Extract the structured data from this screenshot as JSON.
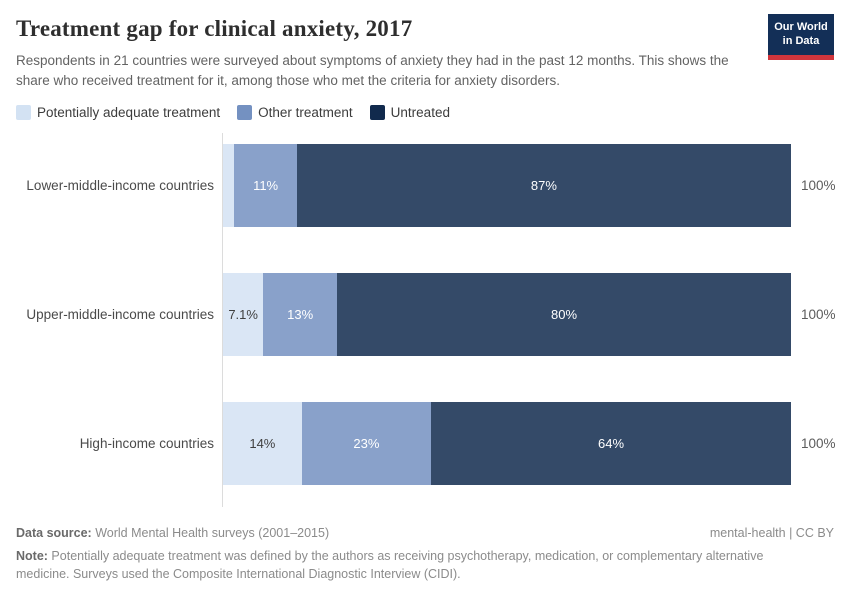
{
  "header": {
    "title": "Treatment gap for clinical anxiety, 2017",
    "subtitle": "Respondents in 21 countries were surveyed about symptoms of anxiety they had in the past 12 months. This shows the share who received treatment for it, among those who met the criteria for anxiety disorders.",
    "logo": {
      "line1": "Our World",
      "line2": "in Data",
      "bg_color": "#132f57",
      "accent_color": "#d0353c"
    }
  },
  "legend": [
    {
      "label": "Potentially adequate treatment",
      "color": "#d3e2f3"
    },
    {
      "label": "Other treatment",
      "color": "#7491c1"
    },
    {
      "label": "Untreated",
      "color": "#112a4d"
    }
  ],
  "chart_data": {
    "type": "bar",
    "orientation": "horizontal",
    "stacked": true,
    "unit": "%",
    "xlim": [
      0,
      100
    ],
    "grid": false,
    "legend_position": "top",
    "bar_fill_opacity": 0.85,
    "axis_line_color": "#dcdcdc",
    "categories": [
      "Lower-middle-income countries",
      "Upper-middle-income countries",
      "High-income countries"
    ],
    "series": [
      {
        "name": "Potentially adequate treatment",
        "color": "#d3e2f3",
        "label_color": "#3f3f3f",
        "values": [
          2,
          7.1,
          14
        ],
        "labels": [
          "",
          "7.1%",
          "14%"
        ]
      },
      {
        "name": "Other treatment",
        "color": "#7491c1",
        "label_color": "#ffffff",
        "values": [
          11,
          13,
          23
        ],
        "labels": [
          "11%",
          "13%",
          "23%"
        ]
      },
      {
        "name": "Untreated",
        "color": "#112a4d",
        "label_color": "#ffffff",
        "values": [
          87,
          80,
          64
        ],
        "labels": [
          "87%",
          "80%",
          "64%"
        ]
      }
    ],
    "total_labels": [
      "100%",
      "100%",
      "100%"
    ]
  },
  "footer": {
    "datasource_label": "Data source:",
    "datasource_text": " World Mental Health surveys (2001–2015)",
    "license": "mental-health | CC BY",
    "note_label": "Note:",
    "note_text": " Potentially adequate treatment was defined by the authors as receiving psychotherapy, medication, or complementary alternative medicine. Surveys used the Composite International Diagnostic Interview (CIDI)."
  }
}
